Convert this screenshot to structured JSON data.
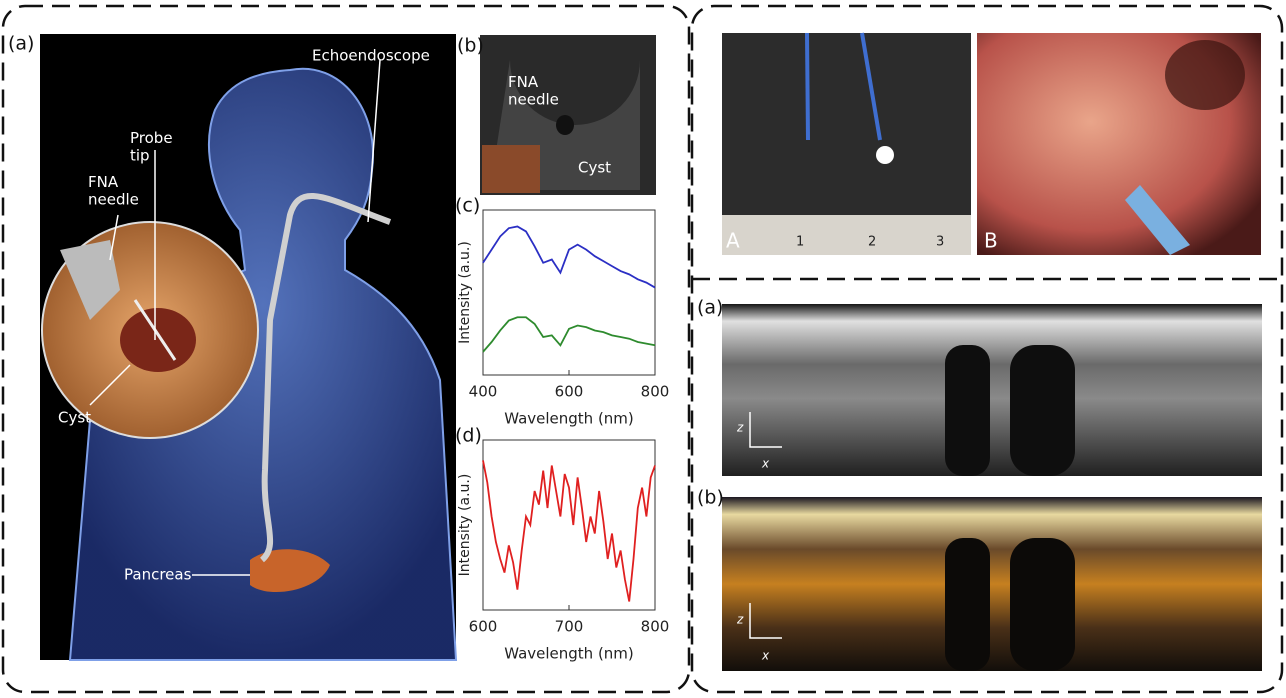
{
  "left_figure": {
    "panel_label": "(a)",
    "annotations": [
      "Echoendoscope",
      "Probe\ntip",
      "FNA\nneedle",
      "Cyst",
      "Pancreas"
    ]
  },
  "ultrasound": {
    "panel_label": "(b)",
    "annotations": [
      "FNA\nneedle",
      "Cyst"
    ]
  },
  "chart_data": [
    {
      "type": "line",
      "panel_label": "(c)",
      "x_label": "Wavelength (nm)",
      "y_label": "Intensity (a.u.)",
      "x": [
        400,
        420,
        440,
        460,
        480,
        500,
        520,
        540,
        560,
        580,
        600,
        620,
        640,
        660,
        680,
        700,
        720,
        740,
        760,
        780,
        800
      ],
      "xlim": [
        400,
        800
      ],
      "xticks": [
        400,
        600,
        800
      ],
      "ylim": [
        0,
        1
      ],
      "series": [
        {
          "color": "#2b2fc4",
          "values": [
            0.68,
            0.76,
            0.84,
            0.89,
            0.9,
            0.87,
            0.78,
            0.68,
            0.7,
            0.62,
            0.76,
            0.79,
            0.76,
            0.72,
            0.69,
            0.66,
            0.63,
            0.61,
            0.58,
            0.56,
            0.53
          ]
        },
        {
          "color": "#2e8b2e",
          "values": [
            0.14,
            0.2,
            0.27,
            0.33,
            0.35,
            0.35,
            0.31,
            0.23,
            0.24,
            0.18,
            0.28,
            0.3,
            0.29,
            0.27,
            0.26,
            0.24,
            0.23,
            0.22,
            0.2,
            0.19,
            0.18
          ]
        }
      ]
    },
    {
      "type": "line",
      "panel_label": "(d)",
      "x_label": "Wavelength (nm)",
      "y_label": "Intensity (a.u.)",
      "x": [
        600,
        605,
        610,
        615,
        620,
        625,
        630,
        635,
        640,
        645,
        650,
        655,
        660,
        665,
        670,
        675,
        680,
        685,
        690,
        695,
        700,
        705,
        710,
        715,
        720,
        725,
        730,
        735,
        740,
        745,
        750,
        755,
        760,
        765,
        770,
        775,
        780,
        785,
        790,
        795,
        800
      ],
      "xlim": [
        600,
        800
      ],
      "xticks": [
        600,
        700,
        800
      ],
      "ylim": [
        0,
        1
      ],
      "series": [
        {
          "color": "#e02020",
          "values": [
            0.88,
            0.75,
            0.55,
            0.4,
            0.3,
            0.22,
            0.38,
            0.28,
            0.12,
            0.35,
            0.55,
            0.5,
            0.7,
            0.62,
            0.82,
            0.6,
            0.85,
            0.7,
            0.55,
            0.8,
            0.72,
            0.5,
            0.78,
            0.6,
            0.4,
            0.55,
            0.45,
            0.7,
            0.52,
            0.3,
            0.45,
            0.25,
            0.35,
            0.18,
            0.05,
            0.3,
            0.6,
            0.72,
            0.55,
            0.78,
            0.85
          ]
        }
      ]
    }
  ],
  "photos": {
    "left_label": "A",
    "right_label": "B",
    "ruler_numbers": [
      "1",
      "2",
      "3"
    ]
  },
  "oct": [
    {
      "panel_label": "(a)",
      "z_label": "z",
      "x_label": "x"
    },
    {
      "panel_label": "(b)",
      "z_label": "z",
      "x_label": "x"
    }
  ]
}
